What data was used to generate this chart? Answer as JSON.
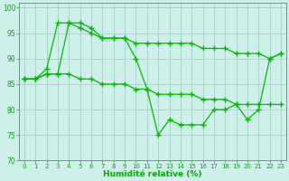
{
  "xlabel": "Humidité relative (%)",
  "bg_color": "#cff0ea",
  "line_color": "#00bb00",
  "grid_color": "#99ccbb",
  "text_color": "#00aa00",
  "spine_color": "#888888",
  "xlim": [
    -0.5,
    23.5
  ],
  "ylim": [
    70,
    101
  ],
  "yticks": [
    70,
    75,
    80,
    85,
    90,
    95,
    100
  ],
  "xticks": [
    0,
    1,
    2,
    3,
    4,
    5,
    6,
    7,
    8,
    9,
    10,
    11,
    12,
    13,
    14,
    15,
    16,
    17,
    18,
    19,
    20,
    21,
    22,
    23
  ],
  "series1_x": [
    0,
    1,
    2,
    3,
    4,
    5,
    6,
    7,
    8,
    9,
    10,
    11,
    12,
    13,
    14,
    15,
    16,
    17,
    18,
    19,
    20,
    21,
    22,
    23
  ],
  "series1_y": [
    86,
    86,
    88,
    97,
    97,
    97,
    96,
    94,
    94,
    94,
    90,
    84,
    75,
    78,
    77,
    77,
    77,
    80,
    80,
    81,
    78,
    80,
    90,
    91
  ],
  "series2_x": [
    0,
    1,
    2,
    3,
    4,
    5,
    6,
    7,
    8,
    9,
    10,
    11,
    12,
    13,
    14,
    15,
    16,
    17,
    18,
    19,
    20,
    21,
    22,
    23
  ],
  "series2_y": [
    86,
    86,
    87,
    87,
    97,
    96,
    95,
    94,
    94,
    94,
    93,
    93,
    93,
    93,
    93,
    93,
    92,
    92,
    92,
    91,
    91,
    91,
    90,
    91
  ],
  "series3_x": [
    0,
    1,
    2,
    3,
    4,
    5,
    6,
    7,
    8,
    9,
    10,
    11,
    12,
    13,
    14,
    15,
    16,
    17,
    18,
    19,
    20,
    21,
    22,
    23
  ],
  "series3_y": [
    86,
    86,
    87,
    87,
    87,
    86,
    86,
    85,
    85,
    85,
    84,
    84,
    83,
    83,
    83,
    83,
    82,
    82,
    82,
    81,
    81,
    81,
    81,
    81
  ]
}
